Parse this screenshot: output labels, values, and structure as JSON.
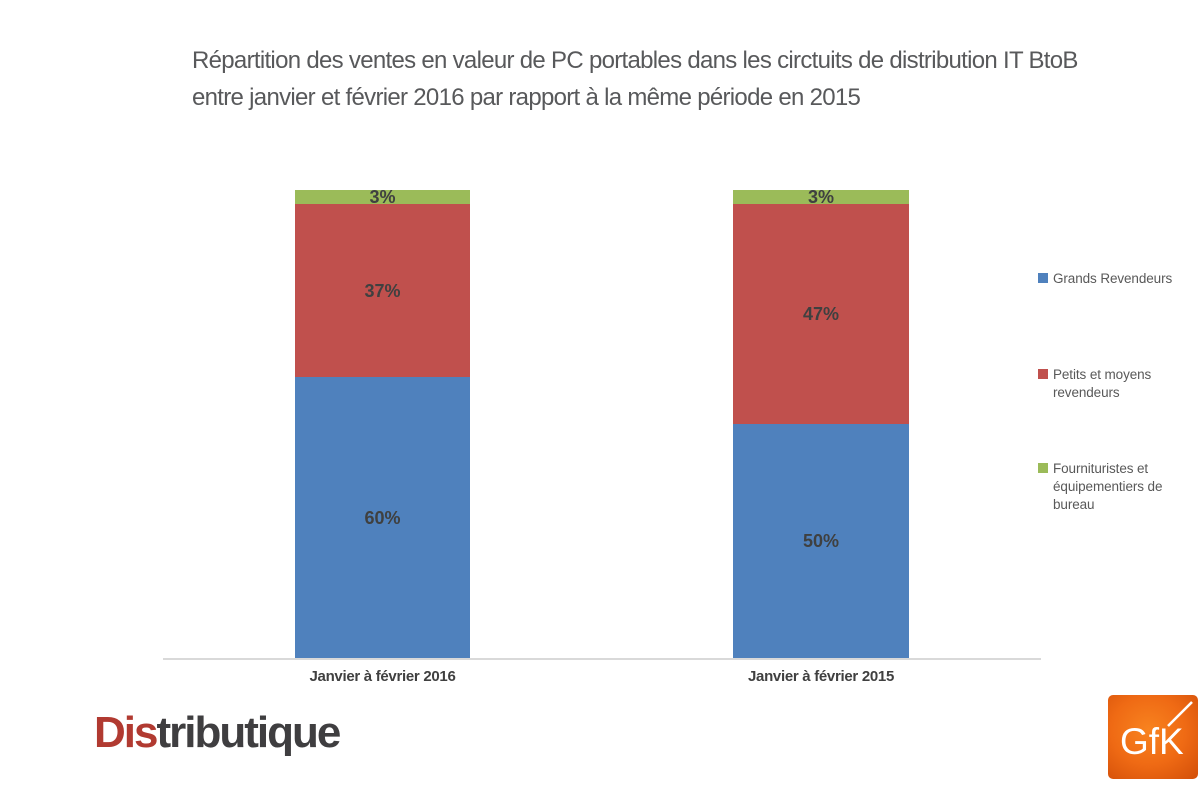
{
  "title": {
    "lines": [
      "Répartition des ventes en valeur de PC portables dans les circtuits de distribution IT BtoB",
      "entre janvier et février 2016 par rapport à la même période en 2015"
    ]
  },
  "chart_data": {
    "type": "bar",
    "stacked": true,
    "title": "Répartition des ventes en valeur de PC portables dans les circtuits de distribution IT BtoB entre janvier et février 2016 par rapport à la même période en 2015",
    "categories": [
      "Janvier à février 2016",
      "Janvier à février 2015"
    ],
    "series": [
      {
        "name": "Grands Revendeurs",
        "color": "#4f81bd",
        "values": [
          60,
          50
        ]
      },
      {
        "name": "Petits et moyens revendeurs",
        "color": "#c0504d",
        "values": [
          37,
          47
        ]
      },
      {
        "name": "Fournituristes et équipementiers de bureau",
        "color": "#9bbb59",
        "values": [
          3,
          3
        ]
      }
    ],
    "value_suffix": "%",
    "ylim": [
      0,
      100
    ],
    "grid": false,
    "legend_position": "right",
    "axis_color": "#d9d9d9"
  },
  "legend": {
    "items": [
      {
        "label": "Grands Revendeurs",
        "color": "#4f81bd"
      },
      {
        "label": "Petits et moyens revendeurs",
        "color": "#c0504d"
      },
      {
        "label": "Fournituristes et équipementiers de bureau",
        "color": "#9bbb59"
      }
    ]
  },
  "branding": {
    "distributique": {
      "prefix": "Dis",
      "suffix": "tributique",
      "prefix_color": "#b13a31",
      "suffix_color": "#3f3e40"
    },
    "gfk": {
      "text": "GfK",
      "background": "#ee6a14",
      "text_color": "#ffffff"
    }
  }
}
